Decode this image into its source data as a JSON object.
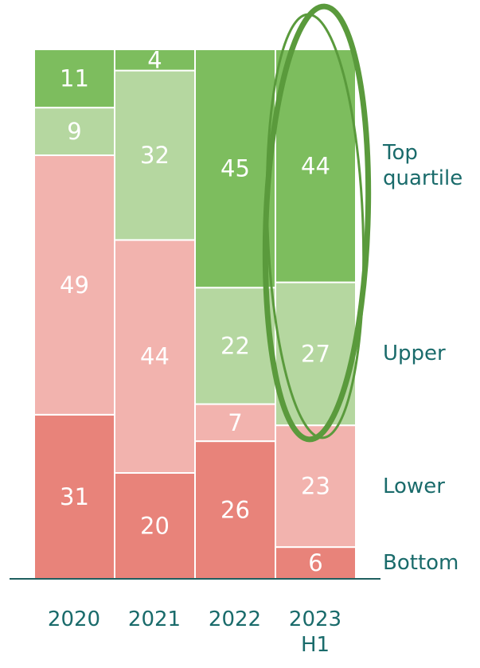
{
  "chart_data": {
    "type": "stacked_bar_100",
    "categories": [
      "2020",
      "2021",
      "2022",
      "2023 H1"
    ],
    "series": [
      {
        "name": "Bottom",
        "color": "#e8837a",
        "values": [
          31,
          20,
          26,
          6
        ]
      },
      {
        "name": "Lower",
        "color": "#f2b3ae",
        "values": [
          49,
          44,
          7,
          23
        ]
      },
      {
        "name": "Upper",
        "color": "#b5d7a0",
        "values": [
          9,
          32,
          22,
          27
        ]
      },
      {
        "name": "Top quartile",
        "color": "#7dbd5e",
        "values": [
          11,
          4,
          45,
          44
        ]
      }
    ],
    "ylim": [
      0,
      100
    ],
    "legend": "right"
  }
}
